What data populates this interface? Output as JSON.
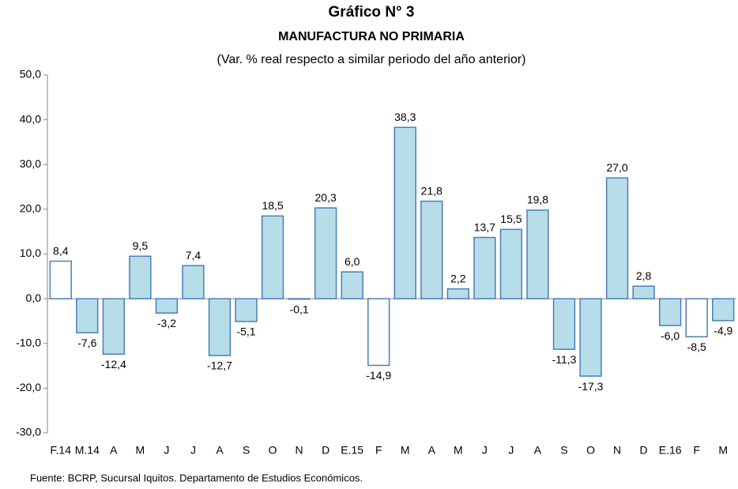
{
  "chart_data": {
    "type": "bar",
    "title": "Gráfico N° 3",
    "subtitle": "MANUFACTURA NO PRIMARIA",
    "note": "(Var. % real respecto a similar periodo del año anterior)",
    "source": "Fuente: BCRP, Sucursal Iquitos. Departamento de Estudios Económicos.",
    "categories": [
      "F.14",
      "M.14",
      "A",
      "M",
      "J",
      "J",
      "A",
      "S",
      "O",
      "N",
      "D",
      "E.15",
      "F",
      "M",
      "A",
      "M",
      "J",
      "J",
      "A",
      "S",
      "O",
      "N",
      "D",
      "E.16",
      "F",
      "M"
    ],
    "values": [
      8.4,
      -7.6,
      -12.4,
      9.5,
      -3.2,
      7.4,
      -12.7,
      -5.1,
      18.5,
      -0.1,
      20.3,
      6.0,
      -14.9,
      38.3,
      21.8,
      2.2,
      13.7,
      15.5,
      19.8,
      -11.3,
      -17.3,
      27.0,
      2.8,
      -6.0,
      -8.5,
      -4.9
    ],
    "value_labels": [
      "8,4",
      "-7,6",
      "-12,4",
      "9,5",
      "-3,2",
      "7,4",
      "-12,7",
      "-5,1",
      "18,5",
      "-0,1",
      "20,3",
      "6,0",
      "-14,9",
      "38,3",
      "21,8",
      "2,2",
      "13,7",
      "15,5",
      "19,8",
      "-11,3",
      "-17,3",
      "27,0",
      "2,8",
      "-6,0",
      "-8,5",
      "-4,9"
    ],
    "colors": [
      "#ffffff",
      "#b7dde8",
      "#b7dde8",
      "#b7dde8",
      "#b7dde8",
      "#b7dde8",
      "#b7dde8",
      "#b7dde8",
      "#b7dde8",
      "#b7dde8",
      "#b7dde8",
      "#b7dde8",
      "#ffffff",
      "#b7dde8",
      "#b7dde8",
      "#b7dde8",
      "#b7dde8",
      "#b7dde8",
      "#b7dde8",
      "#b7dde8",
      "#b7dde8",
      "#b7dde8",
      "#b7dde8",
      "#b7dde8",
      "#ffffff",
      "#b7dde8"
    ],
    "edge_color": "#4a7ebb",
    "ylim": [
      -30,
      50
    ],
    "yticks": [
      {
        "value": -30,
        "label": "-30,0"
      },
      {
        "value": -20,
        "label": "-20,0"
      },
      {
        "value": -10,
        "label": "-10,0"
      },
      {
        "value": 0,
        "label": "0,0"
      },
      {
        "value": 10,
        "label": "10,0"
      },
      {
        "value": 20,
        "label": "20,0"
      },
      {
        "value": 30,
        "label": "30,0"
      },
      {
        "value": 40,
        "label": "40,0"
      },
      {
        "value": 50,
        "label": "50,0"
      }
    ],
    "grid": false
  }
}
